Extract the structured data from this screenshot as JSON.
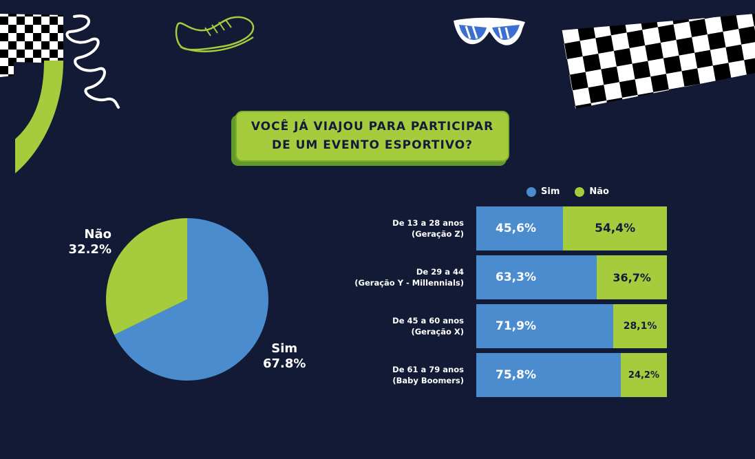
{
  "title_lines": [
    "VOCÊ JÁ VIAJOU PARA PARTICIPAR",
    "DE UM EVENTO ESPORTIVO?"
  ],
  "colors": {
    "background": "#121a35",
    "sim": "#4a8ccd",
    "nao": "#a4cc3c",
    "text_dark": "#15193a"
  },
  "decorations": [
    "checkered-flag-icon",
    "spring-coil-icon",
    "sneaker-icon",
    "sunglasses-icon",
    "green-arc-shape"
  ],
  "chart_data": [
    {
      "type": "pie",
      "labels": [
        "Sim",
        "Não"
      ],
      "values": [
        67.8,
        32.2
      ],
      "value_labels": [
        "67.8%",
        "32.2%"
      ]
    },
    {
      "type": "bar",
      "orientation": "horizontal",
      "stacked": true,
      "legend": {
        "placement": "top",
        "entries": [
          "Sim",
          "Não"
        ]
      },
      "categories": [
        [
          "De 13 a 28 anos",
          "(Geração Z)"
        ],
        [
          "De 29 a 44",
          "(Geração Y - Millennials)"
        ],
        [
          "De 45 a 60 anos",
          "(Geração X)"
        ],
        [
          "De 61 a 79 anos",
          "(Baby Boomers)"
        ]
      ],
      "series": [
        {
          "name": "Sim",
          "values": [
            45.6,
            63.3,
            71.9,
            75.8
          ],
          "labels": [
            "45,6%",
            "63,3%",
            "71,9%",
            "75,8%"
          ]
        },
        {
          "name": "Não",
          "values": [
            54.4,
            36.7,
            28.1,
            24.2
          ],
          "labels": [
            "54,4%",
            "36,7%",
            "28,1%",
            "24,2%"
          ]
        }
      ]
    }
  ]
}
